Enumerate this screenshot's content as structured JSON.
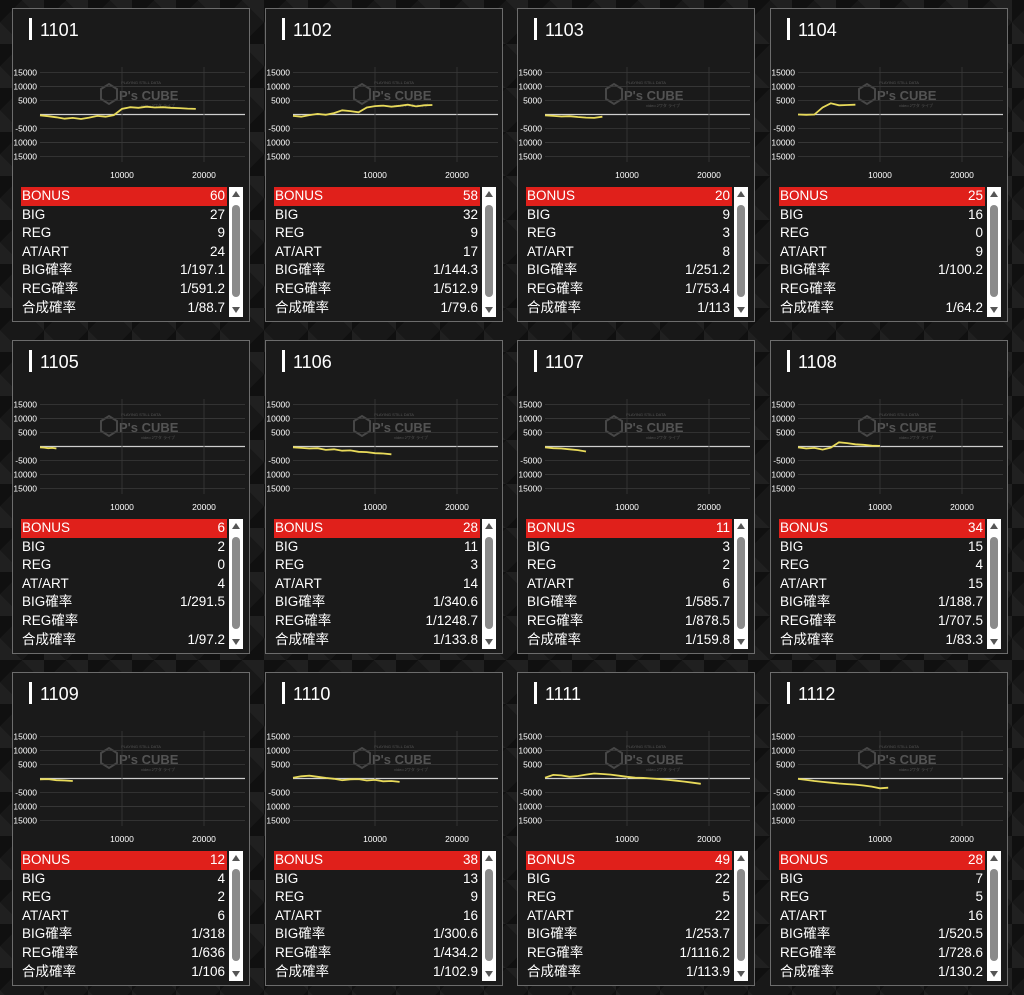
{
  "stat_labels": [
    "BONUS",
    "BIG",
    "REG",
    "AT/ART",
    "BIG確率",
    "REG確率",
    "合成確率"
  ],
  "colors": {
    "bonus_row": "#e0201b",
    "line": "#e8da5a",
    "grid": "#3a3a3a",
    "zero": "#cfcfcf"
  },
  "watermark": {
    "logo": "P's CUBE",
    "top": "PLAYING STILL DATA",
    "bottom": "video 2ワタ ライブ"
  },
  "machines": [
    {
      "id": "1101",
      "stats": [
        "60",
        "27",
        "9",
        "24",
        "1/197.1",
        "1/591.2",
        "1/88.7"
      ],
      "chart_data": {
        "type": "line",
        "x": [
          0,
          1000,
          2000,
          3000,
          4000,
          5000,
          6000,
          7000,
          8000,
          9000,
          10000,
          11000,
          12000,
          13000,
          14000,
          15000,
          16000,
          17000,
          18000,
          19000
        ],
        "y": [
          -300,
          -600,
          -1000,
          -1500,
          -1200,
          -1600,
          -1100,
          -500,
          -800,
          -200,
          2000,
          2600,
          2400,
          2800,
          2500,
          2600,
          2400,
          2300,
          2100,
          2000
        ],
        "yticks": [
          15000,
          10000,
          5000,
          0,
          -5000,
          -10000,
          -15000
        ],
        "yticklabels": [
          "15000",
          "10000",
          "5000",
          "",
          "-5000",
          "-10000",
          "-15000"
        ],
        "xticks": [
          10000,
          20000
        ],
        "xlim": [
          0,
          25000
        ],
        "ylim": [
          -17000,
          17000
        ]
      }
    },
    {
      "id": "1102",
      "stats": [
        "58",
        "32",
        "9",
        "17",
        "1/144.3",
        "1/512.9",
        "1/79.6"
      ],
      "chart_data": {
        "type": "line",
        "x": [
          0,
          1000,
          2000,
          3000,
          4000,
          5000,
          6000,
          7000,
          8000,
          9000,
          10000,
          11000,
          12000,
          13000,
          14000,
          15000,
          16000,
          17000
        ],
        "y": [
          -500,
          -800,
          -200,
          200,
          -100,
          500,
          1500,
          1200,
          800,
          2500,
          3000,
          3200,
          2800,
          3100,
          3500,
          2900,
          3300,
          3400
        ],
        "yticks": [
          15000,
          10000,
          5000,
          0,
          -5000,
          -10000,
          -15000
        ],
        "yticklabels": [
          "15000",
          "10000",
          "5000",
          "",
          "-5000",
          "-10000",
          "-15000"
        ],
        "xticks": [
          10000,
          20000
        ],
        "xlim": [
          0,
          25000
        ],
        "ylim": [
          -17000,
          17000
        ]
      }
    },
    {
      "id": "1103",
      "stats": [
        "20",
        "9",
        "3",
        "8",
        "1/251.2",
        "1/753.4",
        "1/113"
      ],
      "chart_data": {
        "type": "line",
        "x": [
          0,
          1000,
          2000,
          3000,
          4000,
          5000,
          6000,
          7000
        ],
        "y": [
          -300,
          -500,
          -700,
          -600,
          -900,
          -1100,
          -1200,
          -800
        ],
        "yticks": [
          15000,
          10000,
          5000,
          0,
          -5000,
          -10000,
          -15000
        ],
        "yticklabels": [
          "15000",
          "10000",
          "5000",
          "",
          "-5000",
          "-10000",
          "-15000"
        ],
        "xticks": [
          10000,
          20000
        ],
        "xlim": [
          0,
          25000
        ],
        "ylim": [
          -17000,
          17000
        ]
      }
    },
    {
      "id": "1104",
      "stats": [
        "25",
        "16",
        "0",
        "9",
        "1/100.2",
        "",
        "1/64.2"
      ],
      "chart_data": {
        "type": "line",
        "x": [
          0,
          1000,
          2000,
          3000,
          4000,
          5000,
          6000,
          7000
        ],
        "y": [
          0,
          -100,
          0,
          2500,
          4000,
          3300,
          3400,
          3500
        ],
        "yticks": [
          15000,
          10000,
          5000,
          0,
          -5000,
          -10000,
          -15000
        ],
        "yticklabels": [
          "15000",
          "10000",
          "5000",
          "",
          "-5000",
          "-10000",
          "-15000"
        ],
        "xticks": [
          10000,
          20000
        ],
        "xlim": [
          0,
          25000
        ],
        "ylim": [
          -17000,
          17000
        ]
      }
    },
    {
      "id": "1105",
      "stats": [
        "6",
        "2",
        "0",
        "4",
        "1/291.5",
        "",
        "1/97.2"
      ],
      "chart_data": {
        "type": "line",
        "x": [
          0,
          500,
          1000,
          1500,
          2000
        ],
        "y": [
          -300,
          -400,
          -600,
          -500,
          -700
        ],
        "yticks": [
          15000,
          10000,
          5000,
          0,
          -5000,
          -10000,
          -15000
        ],
        "yticklabels": [
          "15000",
          "10000",
          "5000",
          "",
          "-5000",
          "-10000",
          "-15000"
        ],
        "xticks": [
          10000,
          20000
        ],
        "xlim": [
          0,
          25000
        ],
        "ylim": [
          -17000,
          17000
        ]
      }
    },
    {
      "id": "1106",
      "stats": [
        "28",
        "11",
        "3",
        "14",
        "1/340.6",
        "1/1248.7",
        "1/133.8"
      ],
      "chart_data": {
        "type": "line",
        "x": [
          0,
          1000,
          2000,
          3000,
          4000,
          5000,
          6000,
          7000,
          8000,
          9000,
          10000,
          11000,
          12000
        ],
        "y": [
          -300,
          -500,
          -700,
          -600,
          -1200,
          -1000,
          -1500,
          -1400,
          -1900,
          -2000,
          -2400,
          -2500,
          -2800
        ],
        "yticks": [
          15000,
          10000,
          5000,
          0,
          -5000,
          -10000,
          -15000
        ],
        "yticklabels": [
          "15000",
          "10000",
          "5000",
          "",
          "-5000",
          "-10000",
          "-15000"
        ],
        "xticks": [
          10000,
          20000
        ],
        "xlim": [
          0,
          25000
        ],
        "ylim": [
          -17000,
          17000
        ]
      }
    },
    {
      "id": "1107",
      "stats": [
        "11",
        "3",
        "2",
        "6",
        "1/585.7",
        "1/878.5",
        "1/159.8"
      ],
      "chart_data": {
        "type": "line",
        "x": [
          0,
          1000,
          2000,
          3000,
          4000,
          5000
        ],
        "y": [
          -300,
          -600,
          -700,
          -1000,
          -1300,
          -1800
        ],
        "yticks": [
          15000,
          10000,
          5000,
          0,
          -5000,
          -10000,
          -15000
        ],
        "yticklabels": [
          "15000",
          "10000",
          "5000",
          "",
          "-5000",
          "-10000",
          "-15000"
        ],
        "xticks": [
          10000,
          20000
        ],
        "xlim": [
          0,
          25000
        ],
        "ylim": [
          -17000,
          17000
        ]
      }
    },
    {
      "id": "1108",
      "stats": [
        "34",
        "15",
        "4",
        "15",
        "1/188.7",
        "1/707.5",
        "1/83.3"
      ],
      "chart_data": {
        "type": "line",
        "x": [
          0,
          1000,
          2000,
          3000,
          4000,
          5000,
          6000,
          7000,
          8000,
          9000,
          10000
        ],
        "y": [
          -300,
          -700,
          -500,
          -1100,
          -400,
          1500,
          1200,
          800,
          600,
          300,
          200
        ],
        "yticks": [
          15000,
          10000,
          5000,
          0,
          -5000,
          -10000,
          -15000
        ],
        "yticklabels": [
          "15000",
          "10000",
          "5000",
          "",
          "-5000",
          "-10000",
          "-15000"
        ],
        "xticks": [
          10000,
          20000
        ],
        "xlim": [
          0,
          25000
        ],
        "ylim": [
          -17000,
          17000
        ]
      }
    },
    {
      "id": "1109",
      "stats": [
        "12",
        "4",
        "2",
        "6",
        "1/318",
        "1/636",
        "1/106"
      ],
      "chart_data": {
        "type": "line",
        "x": [
          0,
          1000,
          2000,
          3000,
          4000
        ],
        "y": [
          -300,
          -200,
          -600,
          -700,
          -900
        ],
        "yticks": [
          15000,
          10000,
          5000,
          0,
          -5000,
          -10000,
          -15000
        ],
        "yticklabels": [
          "15000",
          "10000",
          "5000",
          "",
          "-5000",
          "-10000",
          "-15000"
        ],
        "xticks": [
          10000,
          20000
        ],
        "xlim": [
          0,
          25000
        ],
        "ylim": [
          -17000,
          17000
        ]
      }
    },
    {
      "id": "1110",
      "stats": [
        "38",
        "13",
        "9",
        "16",
        "1/300.6",
        "1/434.2",
        "1/102.9"
      ],
      "chart_data": {
        "type": "line",
        "x": [
          0,
          1000,
          2000,
          3000,
          4000,
          5000,
          6000,
          7000,
          8000,
          9000,
          10000,
          11000,
          12000,
          13000
        ],
        "y": [
          300,
          800,
          1000,
          600,
          200,
          -100,
          -600,
          -300,
          -200,
          -700,
          -500,
          -1000,
          -900,
          -1200
        ],
        "yticks": [
          15000,
          10000,
          5000,
          0,
          -5000,
          -10000,
          -15000
        ],
        "yticklabels": [
          "15000",
          "10000",
          "5000",
          "",
          "-5000",
          "-10000",
          "-15000"
        ],
        "xticks": [
          10000,
          20000
        ],
        "xlim": [
          0,
          25000
        ],
        "ylim": [
          -17000,
          17000
        ]
      }
    },
    {
      "id": "1111",
      "stats": [
        "49",
        "22",
        "5",
        "22",
        "1/253.7",
        "1/1116.2",
        "1/113.9"
      ],
      "chart_data": {
        "type": "line",
        "x": [
          0,
          1000,
          2000,
          3000,
          4000,
          5000,
          6000,
          7000,
          8000,
          9000,
          10000,
          11000,
          12000,
          13000,
          14000,
          15000,
          16000,
          17000,
          18000,
          19000
        ],
        "y": [
          300,
          1300,
          1100,
          600,
          900,
          1400,
          1800,
          1600,
          1400,
          1000,
          600,
          300,
          200,
          0,
          -200,
          -500,
          -800,
          -1100,
          -1500,
          -1900
        ],
        "yticks": [
          15000,
          10000,
          5000,
          0,
          -5000,
          -10000,
          -15000
        ],
        "yticklabels": [
          "15000",
          "10000",
          "5000",
          "",
          "-5000",
          "-10000",
          "-15000"
        ],
        "xticks": [
          10000,
          20000
        ],
        "xlim": [
          0,
          25000
        ],
        "ylim": [
          -17000,
          17000
        ]
      }
    },
    {
      "id": "1112",
      "stats": [
        "28",
        "7",
        "5",
        "16",
        "1/520.5",
        "1/728.6",
        "1/130.2"
      ],
      "chart_data": {
        "type": "line",
        "x": [
          0,
          1000,
          2000,
          3000,
          4000,
          5000,
          6000,
          7000,
          8000,
          9000,
          10000,
          11000
        ],
        "y": [
          -100,
          -500,
          -900,
          -1200,
          -1500,
          -1800,
          -2000,
          -2200,
          -2500,
          -2900,
          -3500,
          -3300
        ],
        "yticks": [
          15000,
          10000,
          5000,
          0,
          -5000,
          -10000,
          -15000
        ],
        "yticklabels": [
          "15000",
          "10000",
          "5000",
          "",
          "-5000",
          "-10000",
          "-15000"
        ],
        "xticks": [
          10000,
          20000
        ],
        "xlim": [
          0,
          25000
        ],
        "ylim": [
          -17000,
          17000
        ]
      }
    }
  ]
}
